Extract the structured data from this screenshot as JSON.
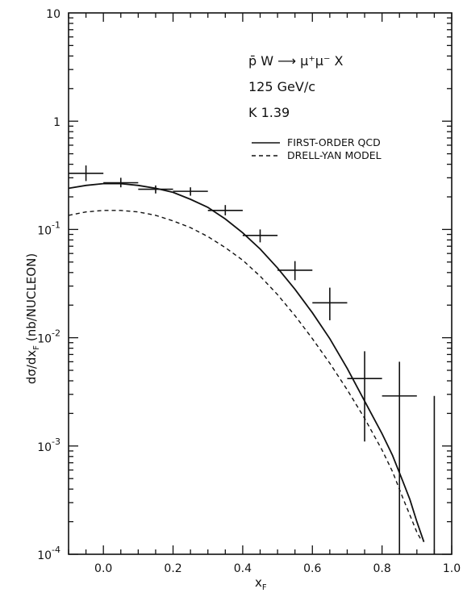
{
  "chart_data": {
    "type": "line",
    "scale_y": "log",
    "xlim": [
      -0.1,
      1.0
    ],
    "ylim": [
      0.0001,
      10
    ],
    "grid": false,
    "legend_position": "top-right",
    "xlabel": {
      "base": "x",
      "sub": "F"
    },
    "ylabel": {
      "pre": "dσ/dx",
      "sub": "F",
      "post": " (nb/NUCLEON)"
    },
    "x_ticks": [
      "0.0",
      "0.2",
      "0.4",
      "0.6",
      "0.8",
      "1.0"
    ],
    "x_tick_values": [
      0.0,
      0.2,
      0.4,
      0.6,
      0.8,
      1.0
    ],
    "y_ticks": [
      {
        "value": 10,
        "base": "10",
        "exp": ""
      },
      {
        "value": 1,
        "base": "1",
        "exp": ""
      },
      {
        "value": 0.1,
        "base": "10",
        "exp": "-1"
      },
      {
        "value": 0.01,
        "base": "10",
        "exp": "-2"
      },
      {
        "value": 0.001,
        "base": "10",
        "exp": "-3"
      },
      {
        "value": 0.0001,
        "base": "10",
        "exp": "-4"
      }
    ],
    "annotations": [
      {
        "text": "p̄ W ⟶ μ⁺μ⁻  X"
      },
      {
        "text": "125 GeV/c"
      },
      {
        "text": "K 1.39"
      }
    ],
    "series": [
      {
        "name": "FIRST-ORDER QCD",
        "style": "solid",
        "x": [
          -0.1,
          -0.05,
          0.0,
          0.05,
          0.1,
          0.15,
          0.2,
          0.25,
          0.3,
          0.35,
          0.4,
          0.45,
          0.5,
          0.55,
          0.6,
          0.65,
          0.7,
          0.75,
          0.8,
          0.83,
          0.86,
          0.88,
          0.9,
          0.92
        ],
        "y": [
          0.24,
          0.255,
          0.265,
          0.265,
          0.255,
          0.24,
          0.22,
          0.19,
          0.16,
          0.125,
          0.093,
          0.066,
          0.044,
          0.028,
          0.017,
          0.0098,
          0.0052,
          0.0026,
          0.0013,
          0.00082,
          0.00047,
          0.00032,
          0.0002,
          0.00013
        ]
      },
      {
        "name": "DRELL-YAN MODEL",
        "style": "dashed",
        "x": [
          -0.1,
          -0.05,
          0.0,
          0.05,
          0.1,
          0.15,
          0.2,
          0.25,
          0.3,
          0.35,
          0.4,
          0.45,
          0.5,
          0.55,
          0.6,
          0.65,
          0.7,
          0.75,
          0.8,
          0.83,
          0.86,
          0.88,
          0.9,
          0.91
        ],
        "y": [
          0.135,
          0.145,
          0.15,
          0.15,
          0.145,
          0.135,
          0.12,
          0.104,
          0.086,
          0.068,
          0.052,
          0.037,
          0.025,
          0.016,
          0.0098,
          0.0058,
          0.0033,
          0.0018,
          0.00092,
          0.00058,
          0.00033,
          0.00023,
          0.00016,
          0.00014
        ]
      }
    ],
    "data_points": [
      {
        "x": -0.05,
        "y": 0.33,
        "xerr": 0.05,
        "ylow": 0.28,
        "yhigh": 0.39
      },
      {
        "x": 0.05,
        "y": 0.27,
        "xerr": 0.05,
        "ylow": 0.245,
        "yhigh": 0.3
      },
      {
        "x": 0.15,
        "y": 0.235,
        "xerr": 0.05,
        "ylow": 0.215,
        "yhigh": 0.255
      },
      {
        "x": 0.25,
        "y": 0.225,
        "xerr": 0.05,
        "ylow": 0.205,
        "yhigh": 0.245
      },
      {
        "x": 0.35,
        "y": 0.15,
        "xerr": 0.05,
        "ylow": 0.135,
        "yhigh": 0.168
      },
      {
        "x": 0.45,
        "y": 0.088,
        "xerr": 0.05,
        "ylow": 0.076,
        "yhigh": 0.1
      },
      {
        "x": 0.55,
        "y": 0.042,
        "xerr": 0.05,
        "ylow": 0.034,
        "yhigh": 0.051
      },
      {
        "x": 0.65,
        "y": 0.021,
        "xerr": 0.05,
        "ylow": 0.0145,
        "yhigh": 0.029
      },
      {
        "x": 0.75,
        "y": 0.0042,
        "xerr": 0.05,
        "ylow": 0.0011,
        "yhigh": 0.0075
      },
      {
        "x": 0.85,
        "y": 0.0029,
        "xerr": 0.05,
        "ylow": 0.0001,
        "yhigh": 0.006
      },
      {
        "x": 0.95,
        "y": null,
        "xerr": 0,
        "ylow": 0.0001,
        "yhigh": 0.0029
      }
    ]
  }
}
